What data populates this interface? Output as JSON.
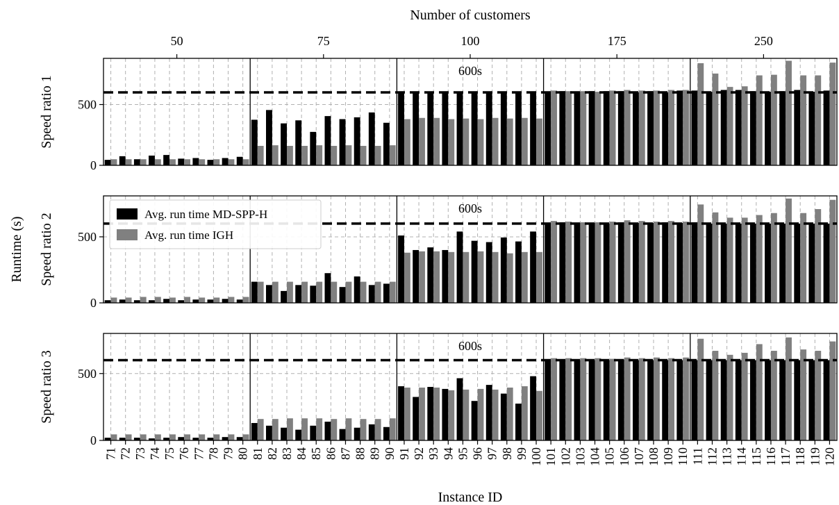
{
  "chart_data": {
    "type": "bar",
    "top_xlabel": "Number of customers",
    "top_groups": [
      {
        "label": "50",
        "ids": [
          71,
          80
        ]
      },
      {
        "label": "75",
        "ids": [
          81,
          90
        ]
      },
      {
        "label": "100",
        "ids": [
          91,
          100
        ]
      },
      {
        "label": "175",
        "ids": [
          101,
          110
        ]
      },
      {
        "label": "250",
        "ids": [
          111,
          120
        ]
      }
    ],
    "xlabel": "Instance ID",
    "ylabel": "Runtime (s)",
    "categories": [
      "71",
      "72",
      "73",
      "74",
      "75",
      "76",
      "77",
      "78",
      "79",
      "80",
      "81",
      "82",
      "83",
      "84",
      "85",
      "86",
      "87",
      "88",
      "89",
      "90",
      "91",
      "92",
      "93",
      "94",
      "95",
      "96",
      "97",
      "98",
      "99",
      "100",
      "101",
      "102",
      "103",
      "104",
      "105",
      "106",
      "107",
      "108",
      "109",
      "110",
      "111",
      "112",
      "113",
      "114",
      "115",
      "116",
      "117",
      "118",
      "119",
      "120"
    ],
    "threshold": {
      "value": 600,
      "label": "600s"
    },
    "legend": {
      "placement": "upper-left of second panel",
      "entries": [
        "Avg. run time MD-SPP-H",
        "Avg. run time IGH"
      ]
    },
    "colors": {
      "md_spp_h": "#000000",
      "igh": "#808080"
    },
    "panels": [
      {
        "ylabel": "Speed ratio 1",
        "ylim": [
          0,
          880
        ],
        "yticks": [
          0,
          500
        ],
        "series": [
          {
            "name": "Avg. run time MD-SPP-H",
            "values": [
              45,
              75,
              50,
              80,
              85,
              55,
              60,
              45,
              60,
              70,
              375,
              455,
              345,
              370,
              275,
              405,
              380,
              395,
              435,
              350,
              600,
              600,
              600,
              600,
              600,
              600,
              600,
              600,
              600,
              600,
              600,
              610,
              605,
              610,
              610,
              610,
              600,
              610,
              600,
              615,
              615,
              605,
              620,
              620,
              610,
              605,
              610,
              620,
              605,
              615
            ]
          },
          {
            "name": "Avg. run time IGH",
            "values": [
              50,
              50,
              50,
              50,
              50,
              50,
              50,
              50,
              50,
              50,
              160,
              165,
              160,
              160,
              165,
              160,
              165,
              160,
              160,
              165,
              380,
              390,
              390,
              380,
              385,
              380,
              390,
              385,
              390,
              385,
              615,
              610,
              610,
              605,
              615,
              620,
              615,
              615,
              620,
              620,
              840,
              755,
              645,
              650,
              740,
              745,
              860,
              740,
              740,
              845
            ]
          }
        ]
      },
      {
        "ylabel": "Speed ratio 2",
        "ylim": [
          0,
          810
        ],
        "yticks": [
          0,
          500
        ],
        "series": [
          {
            "name": "Avg. run time MD-SPP-H",
            "values": [
              20,
              25,
              20,
              20,
              30,
              20,
              25,
              25,
              30,
              25,
              160,
              135,
              90,
              135,
              130,
              225,
              120,
              200,
              135,
              145,
              510,
              400,
              420,
              400,
              540,
              470,
              460,
              495,
              465,
              540,
              600,
              610,
              605,
              605,
              600,
              610,
              605,
              605,
              610,
              605,
              610,
              600,
              600,
              600,
              600,
              600,
              600,
              600,
              600,
              600
            ]
          },
          {
            "name": "Avg. run time IGH",
            "values": [
              40,
              40,
              45,
              45,
              40,
              45,
              40,
              40,
              45,
              45,
              160,
              160,
              160,
              160,
              160,
              160,
              160,
              160,
              160,
              160,
              380,
              390,
              390,
              385,
              385,
              390,
              385,
              375,
              385,
              385,
              620,
              615,
              610,
              610,
              615,
              625,
              620,
              615,
              620,
              615,
              745,
              685,
              645,
              645,
              665,
              680,
              790,
              680,
              710,
              780
            ]
          }
        ]
      },
      {
        "ylabel": "Speed ratio 3",
        "ylim": [
          0,
          800
        ],
        "yticks": [
          0,
          500
        ],
        "series": [
          {
            "name": "Avg. run time MD-SPP-H",
            "values": [
              20,
              20,
              20,
              15,
              20,
              25,
              20,
              20,
              25,
              25,
              130,
              110,
              95,
              80,
              110,
              140,
              85,
              95,
              120,
              100,
              405,
              325,
              400,
              385,
              465,
              295,
              415,
              350,
              275,
              480,
              600,
              605,
              600,
              600,
              600,
              605,
              600,
              600,
              600,
              600,
              600,
              600,
              600,
              600,
              600,
              600,
              600,
              600,
              600,
              600
            ]
          },
          {
            "name": "Avg. run time IGH",
            "values": [
              45,
              45,
              45,
              45,
              45,
              45,
              45,
              45,
              45,
              45,
              160,
              160,
              165,
              165,
              165,
              160,
              165,
              160,
              160,
              165,
              395,
              395,
              395,
              375,
              380,
              385,
              380,
              395,
              405,
              370,
              615,
              615,
              615,
              615,
              610,
              620,
              615,
              620,
              615,
              620,
              760,
              670,
              640,
              655,
              720,
              670,
              770,
              680,
              670,
              740
            ]
          }
        ]
      }
    ]
  }
}
